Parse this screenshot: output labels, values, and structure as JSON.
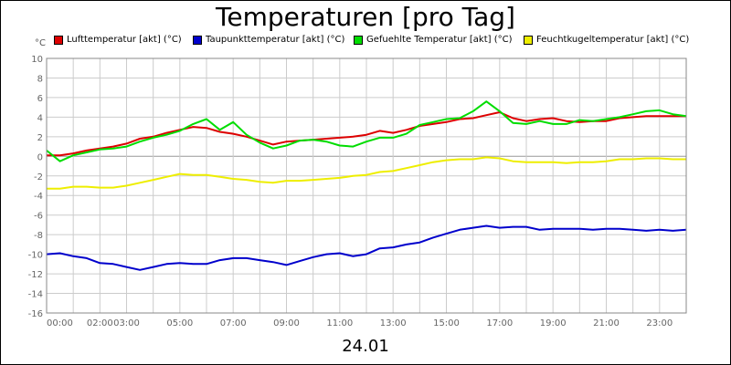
{
  "chart_data": {
    "type": "line",
    "title": "Temperaturen [pro Tag]",
    "date_label": "24.01",
    "ylabel": "°C",
    "ylim": [
      -16,
      10
    ],
    "yticks": [
      10,
      8,
      6,
      4,
      2,
      0,
      -2,
      -4,
      -6,
      -8,
      -10,
      -12,
      -14,
      -16
    ],
    "xlim": [
      0,
      24
    ],
    "xtick_labels": [
      "00:00",
      "02:00",
      "03:00",
      "05:00",
      "07:00",
      "09:00",
      "11:00",
      "13:00",
      "15:00",
      "17:00",
      "19:00",
      "21:00",
      "23:00"
    ],
    "xtick_hours": [
      0,
      2,
      3,
      5,
      7,
      9,
      11,
      13,
      15,
      17,
      19,
      21,
      23
    ],
    "grid": true,
    "legend_position": "top",
    "series": [
      {
        "name": "Lufttemperatur [akt] (°C)",
        "color": "#dd0000",
        "x": [
          0,
          0.5,
          1,
          1.5,
          2,
          2.5,
          3,
          3.5,
          4,
          4.5,
          5,
          5.5,
          6,
          6.5,
          7,
          7.5,
          8,
          8.5,
          9,
          9.5,
          10,
          10.5,
          11,
          11.5,
          12,
          12.5,
          13,
          13.5,
          14,
          14.5,
          15,
          15.5,
          16,
          16.5,
          17,
          17.5,
          18,
          18.5,
          19,
          19.5,
          20,
          20.5,
          21,
          21.5,
          22,
          22.5,
          23,
          23.5,
          24
        ],
        "values": [
          0.1,
          0.1,
          0.3,
          0.6,
          0.8,
          1.0,
          1.3,
          1.8,
          2.0,
          2.4,
          2.7,
          3.0,
          2.9,
          2.5,
          2.3,
          2.0,
          1.6,
          1.2,
          1.5,
          1.6,
          1.7,
          1.8,
          1.9,
          2.0,
          2.2,
          2.6,
          2.4,
          2.7,
          3.1,
          3.3,
          3.5,
          3.8,
          3.9,
          4.2,
          4.5,
          3.9,
          3.6,
          3.8,
          3.9,
          3.6,
          3.5,
          3.6,
          3.6,
          3.9,
          4.0,
          4.1,
          4.1,
          4.1,
          4.1
        ]
      },
      {
        "name": "Taupunkttemperatur [akt] (°C)",
        "color": "#0000cc",
        "x": [
          0,
          0.5,
          1,
          1.5,
          2,
          2.5,
          3,
          3.5,
          4,
          4.5,
          5,
          5.5,
          6,
          6.5,
          7,
          7.5,
          8,
          8.5,
          9,
          9.5,
          10,
          10.5,
          11,
          11.5,
          12,
          12.5,
          13,
          13.5,
          14,
          14.5,
          15,
          15.5,
          16,
          16.5,
          17,
          17.5,
          18,
          18.5,
          19,
          19.5,
          20,
          20.5,
          21,
          21.5,
          22,
          22.5,
          23,
          23.5,
          24
        ],
        "values": [
          -10.0,
          -9.9,
          -10.2,
          -10.4,
          -10.9,
          -11.0,
          -11.3,
          -11.6,
          -11.3,
          -11.0,
          -10.9,
          -11.0,
          -11.0,
          -10.6,
          -10.4,
          -10.4,
          -10.6,
          -10.8,
          -11.1,
          -10.7,
          -10.3,
          -10.0,
          -9.9,
          -10.2,
          -10.0,
          -9.4,
          -9.3,
          -9.0,
          -8.8,
          -8.3,
          -7.9,
          -7.5,
          -7.3,
          -7.1,
          -7.3,
          -7.2,
          -7.2,
          -7.5,
          -7.4,
          -7.4,
          -7.4,
          -7.5,
          -7.4,
          -7.4,
          -7.5,
          -7.6,
          -7.5,
          -7.6,
          -7.5
        ]
      },
      {
        "name": "Gefuehlte Temperatur [akt] (°C)",
        "color": "#00dd00",
        "x": [
          0,
          0.5,
          1,
          1.5,
          2,
          2.5,
          3,
          3.5,
          4,
          4.5,
          5,
          5.5,
          6,
          6.5,
          7,
          7.5,
          8,
          8.5,
          9,
          9.5,
          10,
          10.5,
          11,
          11.5,
          12,
          12.5,
          13,
          13.5,
          14,
          14.5,
          15,
          15.5,
          16,
          16.5,
          17,
          17.5,
          18,
          18.5,
          19,
          19.5,
          20,
          20.5,
          21,
          21.5,
          22,
          22.5,
          23,
          23.5,
          24
        ],
        "values": [
          0.6,
          -0.5,
          0.1,
          0.4,
          0.7,
          0.8,
          1.0,
          1.5,
          1.9,
          2.2,
          2.6,
          3.3,
          3.8,
          2.7,
          3.5,
          2.2,
          1.4,
          0.8,
          1.1,
          1.6,
          1.7,
          1.5,
          1.1,
          1.0,
          1.5,
          1.9,
          1.9,
          2.3,
          3.2,
          3.5,
          3.8,
          3.9,
          4.6,
          5.6,
          4.6,
          3.4,
          3.3,
          3.6,
          3.3,
          3.3,
          3.7,
          3.6,
          3.8,
          4.0,
          4.3,
          4.6,
          4.7,
          4.3,
          4.1
        ]
      },
      {
        "name": "Feuchtkugeltemperatur [akt] (°C)",
        "color": "#eeee00",
        "x": [
          0,
          0.5,
          1,
          1.5,
          2,
          2.5,
          3,
          3.5,
          4,
          4.5,
          5,
          5.5,
          6,
          6.5,
          7,
          7.5,
          8,
          8.5,
          9,
          9.5,
          10,
          10.5,
          11,
          11.5,
          12,
          12.5,
          13,
          13.5,
          14,
          14.5,
          15,
          15.5,
          16,
          16.5,
          17,
          17.5,
          18,
          18.5,
          19,
          19.5,
          20,
          20.5,
          21,
          21.5,
          22,
          22.5,
          23,
          23.5,
          24
        ],
        "values": [
          -3.3,
          -3.3,
          -3.1,
          -3.1,
          -3.2,
          -3.2,
          -3.0,
          -2.7,
          -2.4,
          -2.1,
          -1.8,
          -1.9,
          -1.9,
          -2.1,
          -2.3,
          -2.4,
          -2.6,
          -2.7,
          -2.5,
          -2.5,
          -2.4,
          -2.3,
          -2.2,
          -2.0,
          -1.9,
          -1.6,
          -1.5,
          -1.2,
          -0.9,
          -0.6,
          -0.4,
          -0.3,
          -0.3,
          -0.1,
          -0.2,
          -0.5,
          -0.6,
          -0.6,
          -0.6,
          -0.7,
          -0.6,
          -0.6,
          -0.5,
          -0.3,
          -0.3,
          -0.2,
          -0.2,
          -0.3,
          -0.3
        ]
      }
    ]
  }
}
